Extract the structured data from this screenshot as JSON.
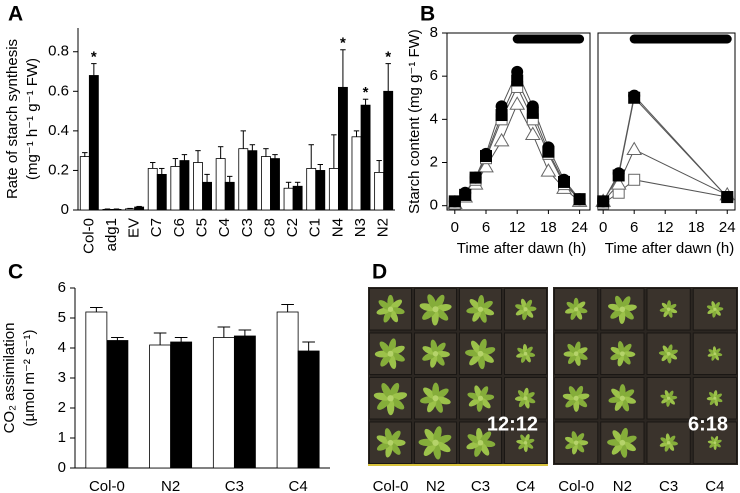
{
  "chart_data": [
    {
      "type": "bar",
      "panel": "A",
      "ylabel": [
        "Rate of starch synthesis",
        "(mg⁻¹ h⁻¹ g⁻¹ FW)"
      ],
      "categories": [
        "Col-0",
        "adg1",
        "EV",
        "C7",
        "C6",
        "C5",
        "C4",
        "C3",
        "C8",
        "C2",
        "C1",
        "N4",
        "N3",
        "N2"
      ],
      "xtick_rotation": -90,
      "series": [
        {
          "color": "#ffffff",
          "values": [
            0.27,
            0.003,
            0.006,
            0.21,
            0.22,
            0.24,
            0.26,
            0.31,
            0.27,
            0.11,
            0.21,
            0.21,
            0.37,
            0.19
          ],
          "errors": [
            0.02,
            0.002,
            0.002,
            0.03,
            0.04,
            0.06,
            0.06,
            0.09,
            0.04,
            0.03,
            0.12,
            0.17,
            0.03,
            0.06
          ]
        },
        {
          "color": "#000000",
          "values": [
            0.68,
            0.003,
            0.015,
            0.18,
            0.25,
            0.14,
            0.14,
            0.3,
            0.26,
            0.12,
            0.2,
            0.62,
            0.53,
            0.6
          ],
          "errors": [
            0.06,
            0.002,
            0.003,
            0.03,
            0.03,
            0.04,
            0.03,
            0.03,
            0.02,
            0.02,
            0.03,
            0.19,
            0.03,
            0.14
          ]
        }
      ],
      "significance": [
        "*",
        null,
        null,
        null,
        null,
        null,
        null,
        null,
        null,
        null,
        null,
        "*",
        "*",
        "*"
      ],
      "ylim": [
        0,
        0.92
      ],
      "yticks": [
        0,
        0.2,
        0.4,
        0.6,
        0.8
      ]
    },
    {
      "type": "line",
      "panel": "B",
      "ylabel": "Starch content (mg g⁻¹ FW)",
      "xlabel": "Time after dawn (h)",
      "x": [
        0,
        2,
        4,
        6,
        9,
        12,
        15,
        18,
        21,
        24
      ],
      "night": [
        12,
        24
      ],
      "series": [
        {
          "marker": "triangle",
          "filled": false,
          "values": [
            0.1,
            0.4,
            1.0,
            1.8,
            3.0,
            4.7,
            3.3,
            1.6,
            0.8,
            0.2
          ]
        },
        {
          "marker": "square",
          "filled": false,
          "values": [
            0.1,
            0.5,
            1.2,
            2.2,
            4.0,
            5.5,
            4.0,
            2.4,
            1.0,
            0.3
          ]
        },
        {
          "marker": "square",
          "filled": true,
          "values": [
            0.2,
            0.5,
            1.3,
            2.3,
            4.2,
            5.8,
            4.3,
            2.5,
            1.1,
            0.3
          ]
        },
        {
          "marker": "circle",
          "filled": true,
          "values": [
            0.2,
            0.6,
            1.3,
            2.4,
            4.6,
            6.2,
            4.6,
            2.7,
            1.2,
            0.3
          ]
        }
      ],
      "xlim": [
        -1.5,
        26
      ],
      "xticks": [
        0,
        6,
        12,
        18,
        24
      ],
      "ylim": [
        -0.2,
        8
      ],
      "yticks": [
        0,
        2,
        4,
        6,
        8
      ]
    },
    {
      "type": "line",
      "xlabel": "Time after dawn (h)",
      "x": [
        0,
        3,
        6,
        24
      ],
      "night": [
        6,
        24
      ],
      "series": [
        {
          "marker": "square",
          "filled": false,
          "values": [
            0.1,
            0.6,
            1.2,
            0.4
          ]
        },
        {
          "marker": "triangle",
          "filled": false,
          "values": [
            0.2,
            1.0,
            2.6,
            0.5
          ]
        },
        {
          "marker": "square",
          "filled": true,
          "values": [
            0.2,
            1.4,
            5.0,
            0.4
          ]
        },
        {
          "marker": "circle",
          "filled": true,
          "values": [
            0.2,
            1.5,
            5.1,
            0.4
          ]
        }
      ],
      "xlim": [
        -1,
        25.5
      ],
      "xticks": [
        0,
        6,
        12,
        18,
        24
      ],
      "ylim": [
        -0.2,
        8
      ]
    },
    {
      "type": "bar",
      "panel": "C",
      "ylabel": [
        "CO₂ assimilation",
        "(µmol m⁻² s⁻¹)"
      ],
      "categories": [
        "Col-0",
        "N2",
        "C3",
        "C4"
      ],
      "series": [
        {
          "color": "#ffffff",
          "values": [
            5.2,
            4.1,
            4.35,
            5.2
          ],
          "errors": [
            0.15,
            0.4,
            0.35,
            0.25
          ]
        },
        {
          "color": "#000000",
          "values": [
            4.25,
            4.2,
            4.4,
            3.9
          ],
          "errors": [
            0.1,
            0.15,
            0.2,
            0.3
          ]
        }
      ],
      "ylim": [
        0,
        6
      ],
      "yticks": [
        0,
        1,
        2,
        3,
        4,
        5,
        6
      ]
    }
  ],
  "photo_panel": {
    "panel": "D",
    "photos": [
      {
        "label": "12:12",
        "columns": [
          "Col-0",
          "N2",
          "C3",
          "C4"
        ]
      },
      {
        "label": "6:18",
        "columns": [
          "Col-0",
          "N2",
          "C3",
          "C4"
        ]
      }
    ]
  }
}
